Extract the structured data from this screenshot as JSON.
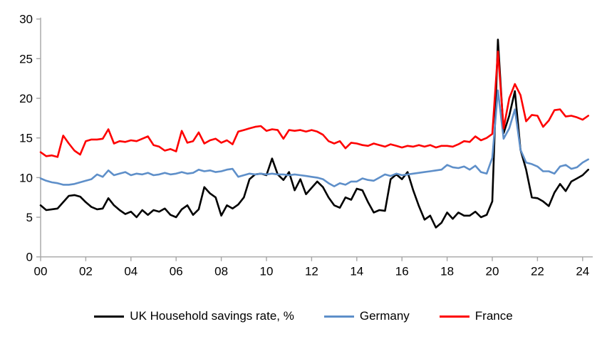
{
  "chart_data": {
    "type": "line",
    "title": "",
    "frequency": "quarterly",
    "x_start": "2000 Q1",
    "x_end": "2024 Q2",
    "x_tick_labels": [
      "00",
      "02",
      "04",
      "06",
      "08",
      "10",
      "12",
      "14",
      "16",
      "18",
      "20",
      "22",
      "24"
    ],
    "y_ticks": [
      0,
      5,
      10,
      15,
      20,
      25,
      30
    ],
    "ylim": [
      0,
      30
    ],
    "grid": false,
    "legend_position": "bottom",
    "axis_color": "#a6a6a6",
    "series": [
      {
        "name": "UK Household savings rate, %",
        "color": "#000000",
        "values": [
          6.5,
          5.9,
          6.0,
          6.1,
          6.9,
          7.7,
          7.8,
          7.6,
          6.9,
          6.3,
          6.0,
          6.1,
          7.4,
          6.5,
          5.9,
          5.4,
          5.7,
          5.0,
          5.9,
          5.3,
          5.9,
          5.7,
          6.1,
          5.3,
          5.0,
          6.0,
          6.5,
          5.3,
          6.0,
          8.8,
          8.0,
          7.5,
          5.2,
          6.5,
          6.1,
          6.6,
          7.5,
          9.8,
          10.4,
          10.5,
          10.3,
          12.4,
          10.4,
          9.7,
          10.7,
          8.4,
          9.8,
          7.9,
          8.7,
          9.5,
          8.8,
          7.5,
          6.5,
          6.2,
          7.5,
          7.2,
          8.6,
          8.4,
          6.9,
          5.6,
          5.9,
          5.8,
          9.8,
          10.4,
          9.8,
          10.7,
          8.4,
          6.4,
          4.7,
          5.2,
          3.7,
          4.3,
          5.6,
          4.8,
          5.6,
          5.2,
          5.2,
          5.7,
          5.0,
          5.3,
          7.0,
          27.4,
          15.6,
          17.8,
          20.9,
          13.5,
          11.0,
          7.5,
          7.4,
          7.0,
          6.4,
          8.1,
          9.2,
          8.3,
          9.5,
          9.9,
          10.3,
          11.0
        ]
      },
      {
        "name": "Germany",
        "color": "#5e8fc9",
        "values": [
          9.9,
          9.6,
          9.4,
          9.3,
          9.1,
          9.1,
          9.2,
          9.4,
          9.6,
          9.8,
          10.4,
          10.1,
          10.9,
          10.3,
          10.5,
          10.7,
          10.3,
          10.5,
          10.4,
          10.6,
          10.3,
          10.4,
          10.6,
          10.4,
          10.5,
          10.7,
          10.5,
          10.6,
          11.0,
          10.8,
          10.9,
          10.7,
          10.8,
          11.0,
          11.1,
          10.1,
          10.3,
          10.5,
          10.4,
          10.5,
          10.4,
          10.5,
          10.4,
          10.4,
          10.3,
          10.4,
          10.3,
          10.2,
          10.1,
          10.0,
          9.8,
          9.3,
          8.9,
          9.3,
          9.1,
          9.5,
          9.5,
          9.9,
          9.7,
          9.6,
          10.0,
          10.4,
          10.2,
          10.5,
          10.3,
          10.4,
          10.5,
          10.6,
          10.7,
          10.8,
          10.9,
          11.0,
          11.6,
          11.3,
          11.2,
          11.4,
          11.0,
          11.5,
          10.7,
          10.5,
          12.5,
          21.0,
          14.9,
          16.2,
          18.6,
          13.5,
          11.9,
          11.7,
          11.4,
          10.8,
          10.8,
          10.5,
          11.4,
          11.6,
          11.1,
          11.3,
          11.9,
          12.3
        ]
      },
      {
        "name": "France",
        "color": "#fe0000",
        "values": [
          13.2,
          12.7,
          12.8,
          12.6,
          15.3,
          14.3,
          13.4,
          12.9,
          14.6,
          14.8,
          14.8,
          14.9,
          16.1,
          14.3,
          14.6,
          14.5,
          14.7,
          14.6,
          14.9,
          15.2,
          14.1,
          13.9,
          13.4,
          13.6,
          13.3,
          15.9,
          14.4,
          14.6,
          15.7,
          14.3,
          14.7,
          14.9,
          14.4,
          14.7,
          14.2,
          15.8,
          16.0,
          16.2,
          16.4,
          16.5,
          15.9,
          16.1,
          16.0,
          14.9,
          16.0,
          15.9,
          16.0,
          15.8,
          16.0,
          15.8,
          15.4,
          14.6,
          14.3,
          14.6,
          13.7,
          14.4,
          14.3,
          14.1,
          14.0,
          14.3,
          14.1,
          13.9,
          14.2,
          14.0,
          13.8,
          14.0,
          13.9,
          14.1,
          13.9,
          14.1,
          13.8,
          14.0,
          14.0,
          13.9,
          14.2,
          14.6,
          14.5,
          15.2,
          14.7,
          15.0,
          15.5,
          25.9,
          16.2,
          20.0,
          21.8,
          20.4,
          17.1,
          17.9,
          17.8,
          16.4,
          17.2,
          18.5,
          18.6,
          17.7,
          17.8,
          17.6,
          17.3,
          17.8
        ]
      }
    ]
  }
}
